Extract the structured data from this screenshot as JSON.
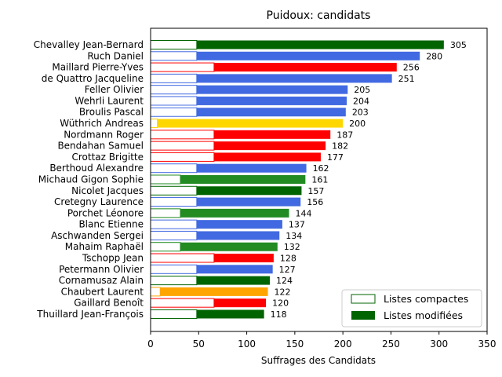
{
  "chart_data": {
    "type": "bar",
    "orientation": "horizontal",
    "stacked": true,
    "title": "Puidoux: candidats",
    "xlabel": "Suffrages des Candidats",
    "ylabel": "",
    "xlim": [
      0,
      350
    ],
    "xticks": [
      0,
      50,
      100,
      150,
      200,
      250,
      300,
      350
    ],
    "grid": false,
    "legend_position": "bottom-right",
    "legend": [
      {
        "label": "Listes compactes",
        "style": "outline",
        "color": "#006400"
      },
      {
        "label": "Listes modifiées",
        "style": "filled",
        "color": "#006400"
      }
    ],
    "categories": [
      "Chevalley Jean-Bernard",
      "Ruch Daniel",
      "Maillard Pierre-Yves",
      "de Quattro Jacqueline",
      "Feller Olivier",
      "Wehrli Laurent",
      "Broulis Pascal",
      "Wüthrich Andreas",
      "Nordmann Roger",
      "Bendahan Samuel",
      "Crottaz Brigitte",
      "Berthoud Alexandre",
      "Michaud Gigon Sophie",
      "Nicolet Jacques",
      "Cretegny Laurence",
      "Porchet Léonore",
      "Blanc Etienne",
      "Aschwanden Sergei",
      "Mahaim Raphaël",
      "Tschopp Jean",
      "Petermann Olivier",
      "Cornamusaz Alain",
      "Chaubert Laurent",
      "Gaillard Benoît",
      "Thuillard Jean-François"
    ],
    "totals": [
      305,
      280,
      256,
      251,
      205,
      204,
      203,
      200,
      187,
      182,
      177,
      162,
      161,
      157,
      156,
      144,
      137,
      134,
      132,
      128,
      127,
      124,
      122,
      120,
      118
    ],
    "series": [
      {
        "name": "Listes compactes",
        "values": [
          48,
          48,
          66,
          48,
          48,
          48,
          48,
          7,
          66,
          66,
          66,
          48,
          31,
          48,
          48,
          31,
          48,
          48,
          31,
          66,
          48,
          48,
          10,
          66,
          48
        ]
      },
      {
        "name": "Listes modifiées",
        "values": [
          257,
          232,
          190,
          203,
          157,
          156,
          155,
          193,
          121,
          116,
          111,
          114,
          130,
          109,
          108,
          113,
          89,
          86,
          101,
          62,
          79,
          76,
          112,
          54,
          70
        ]
      }
    ],
    "colors": [
      "#006400",
      "#4169E1",
      "#FF0000",
      "#4169E1",
      "#4169E1",
      "#4169E1",
      "#4169E1",
      "#FFD700",
      "#FF0000",
      "#FF0000",
      "#FF0000",
      "#4169E1",
      "#228B22",
      "#006400",
      "#4169E1",
      "#228B22",
      "#4169E1",
      "#4169E1",
      "#228B22",
      "#FF0000",
      "#4169E1",
      "#006400",
      "#FFA500",
      "#FF0000",
      "#006400"
    ]
  }
}
